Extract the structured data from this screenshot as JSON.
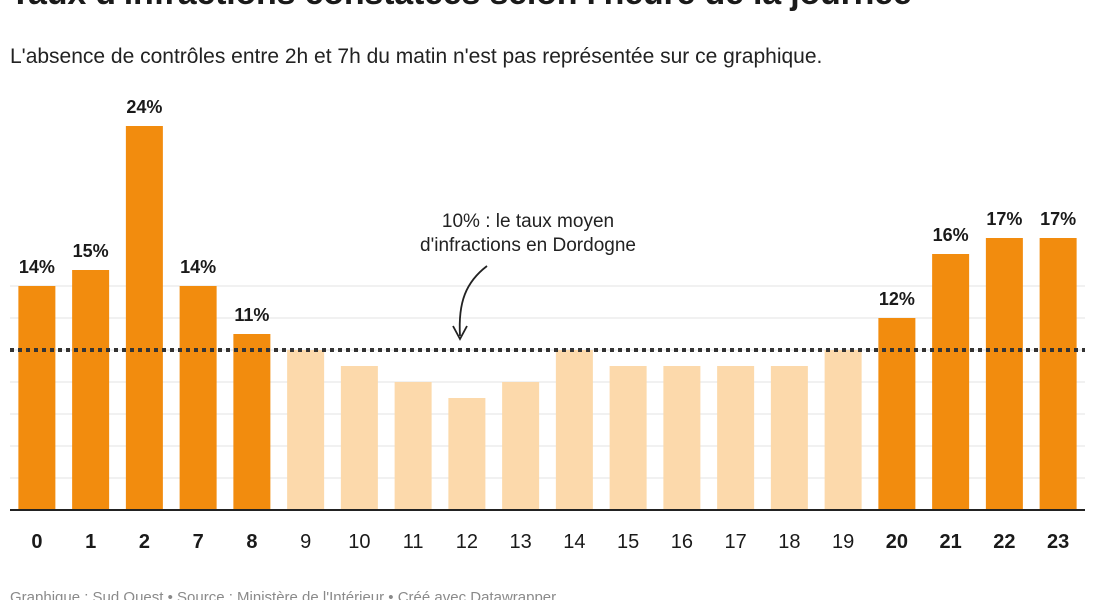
{
  "title": "Taux d'infractions constatées selon l'heure de la journée",
  "subtitle": "L'absence de contrôles entre 2h et 7h du matin n'est pas représentée sur ce graphique.",
  "source": "Graphique : Sud Ouest • Source : Ministère de l'Intérieur • Créé avec Datawrapper",
  "colors": {
    "highlight": "#f28c0e",
    "muted": "#fcd9ab",
    "average_line": "#333333",
    "grid": "#e3e3e3",
    "axis": "#222222"
  },
  "chart_data": {
    "type": "bar",
    "title": "Taux d'infractions constatées selon l'heure de la journée",
    "categories": [
      "0",
      "1",
      "2",
      "7",
      "8",
      "9",
      "10",
      "11",
      "12",
      "13",
      "14",
      "15",
      "16",
      "17",
      "18",
      "19",
      "20",
      "21",
      "22",
      "23"
    ],
    "values": [
      14,
      15,
      24,
      14,
      11,
      10,
      9,
      8,
      7,
      8,
      10,
      9,
      9,
      9,
      9,
      10,
      12,
      16,
      17,
      17
    ],
    "highlighted": [
      true,
      true,
      true,
      true,
      true,
      false,
      false,
      false,
      false,
      false,
      false,
      false,
      false,
      false,
      false,
      false,
      true,
      true,
      true,
      true
    ],
    "value_labels": [
      "14%",
      "15%",
      "24%",
      "14%",
      "11%",
      "",
      "",
      "",
      "",
      "",
      "",
      "",
      "",
      "",
      "",
      "",
      "12%",
      "16%",
      "17%",
      "17%"
    ],
    "reference_line": {
      "value": 10,
      "label_line1": "10% : le taux moyen",
      "label_line2": "d'infractions en Dordogne"
    },
    "ylim": [
      0,
      24
    ],
    "grid": true,
    "xlabel": "",
    "ylabel": ""
  }
}
